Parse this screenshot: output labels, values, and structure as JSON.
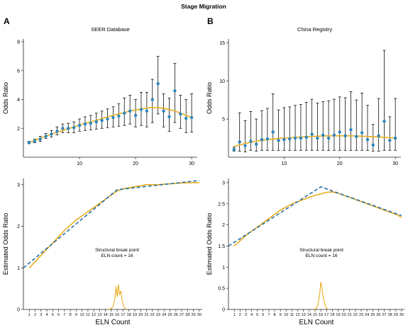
{
  "figure": {
    "title": "Stage Migration",
    "colors": {
      "points": "#2a86bf",
      "fit": "#e8ad1e",
      "dashed": "#2a6fa5",
      "axis": "#222222",
      "errorbar": "#111111"
    }
  },
  "chart_data": [
    {
      "panel": "A-top",
      "panel_label": "A",
      "type": "scatter",
      "title": "SEER Database",
      "xlabel": "",
      "ylabel": "Odds Ratio",
      "xlim": [
        0,
        31
      ],
      "ylim": [
        0,
        8.2
      ],
      "xticks": [
        10,
        20,
        30
      ],
      "yticks": [
        2,
        4,
        6,
        8
      ],
      "series": [
        {
          "x": [
            1,
            2,
            3,
            4,
            5,
            6,
            7,
            8,
            9,
            10,
            11,
            12,
            13,
            14,
            15,
            16,
            17,
            18,
            19,
            20,
            21,
            22,
            23,
            24,
            25,
            26,
            27,
            28,
            29,
            30
          ],
          "y": [
            1.0,
            1.1,
            1.25,
            1.45,
            1.6,
            1.8,
            2.0,
            2.0,
            2.05,
            2.2,
            2.3,
            2.35,
            2.45,
            2.55,
            2.65,
            2.75,
            2.85,
            3.05,
            3.2,
            2.9,
            3.3,
            3.2,
            4.0,
            5.1,
            3.2,
            2.8,
            4.6,
            3.0,
            2.7,
            2.75
          ],
          "lower": [
            0.95,
            1.0,
            1.1,
            1.3,
            1.4,
            1.55,
            1.7,
            1.7,
            1.7,
            1.8,
            1.85,
            1.9,
            1.95,
            2.0,
            2.05,
            2.1,
            2.15,
            2.2,
            2.3,
            2.1,
            2.2,
            2.1,
            2.4,
            3.0,
            2.1,
            1.8,
            2.4,
            2.0,
            1.7,
            1.75
          ],
          "upper": [
            1.1,
            1.25,
            1.45,
            1.65,
            1.85,
            2.1,
            2.3,
            2.35,
            2.45,
            2.65,
            2.8,
            2.9,
            3.05,
            3.2,
            3.35,
            3.5,
            3.7,
            4.1,
            4.3,
            4.0,
            4.5,
            4.5,
            5.4,
            7.0,
            4.4,
            4.1,
            6.5,
            4.3,
            4.0,
            4.4
          ]
        }
      ],
      "fit": {
        "x": [
          1,
          3,
          5,
          7,
          9,
          11,
          13,
          15,
          17,
          19,
          21,
          23,
          25,
          27,
          29,
          30
        ],
        "y": [
          1.0,
          1.3,
          1.6,
          1.85,
          2.1,
          2.35,
          2.55,
          2.8,
          3.0,
          3.2,
          3.35,
          3.45,
          3.4,
          3.2,
          2.9,
          2.75
        ]
      }
    },
    {
      "panel": "B-top",
      "panel_label": "B",
      "type": "scatter",
      "title": "China Registry",
      "xlabel": "",
      "ylabel": "Odds Ratio",
      "xlim": [
        0,
        31
      ],
      "ylim": [
        0,
        15.5
      ],
      "xticks": [
        10,
        20,
        30
      ],
      "yticks": [
        5,
        10,
        15
      ],
      "series": [
        {
          "x": [
            1,
            2,
            3,
            4,
            5,
            6,
            7,
            8,
            9,
            10,
            11,
            12,
            13,
            14,
            15,
            16,
            17,
            18,
            19,
            20,
            21,
            22,
            23,
            24,
            25,
            26,
            27,
            28,
            29,
            30
          ],
          "y": [
            1.0,
            2.0,
            1.5,
            2.1,
            1.7,
            2.3,
            2.4,
            3.3,
            2.2,
            2.3,
            2.4,
            2.5,
            2.5,
            2.6,
            3.0,
            2.5,
            2.9,
            2.5,
            2.9,
            3.3,
            2.8,
            3.6,
            2.7,
            3.2,
            2.3,
            1.6,
            2.8,
            4.7,
            2.2,
            2.5
          ],
          "lower": [
            0.8,
            0.8,
            0.7,
            0.9,
            0.8,
            0.9,
            0.9,
            0.9,
            0.9,
            0.9,
            0.9,
            0.9,
            0.9,
            0.9,
            0.9,
            0.9,
            0.9,
            0.9,
            0.9,
            0.9,
            0.9,
            0.9,
            0.9,
            0.9,
            0.9,
            0.8,
            0.8,
            0.9,
            0.9,
            0.9
          ],
          "upper": [
            1.3,
            5.8,
            4.8,
            6.0,
            5.0,
            6.1,
            6.4,
            8.3,
            6.2,
            6.5,
            6.6,
            6.8,
            6.9,
            7.2,
            7.6,
            7.1,
            7.3,
            7.4,
            7.6,
            7.9,
            7.8,
            8.6,
            7.5,
            8.4,
            6.8,
            4.3,
            7.7,
            14.0,
            5.3,
            7.7
          ]
        }
      ],
      "fit": {
        "x": [
          1,
          3,
          5,
          7,
          9,
          11,
          13,
          15,
          17,
          19,
          21,
          23,
          25,
          27,
          29,
          30
        ],
        "y": [
          1.4,
          1.8,
          2.1,
          2.3,
          2.45,
          2.55,
          2.65,
          2.72,
          2.78,
          2.8,
          2.8,
          2.78,
          2.72,
          2.65,
          2.55,
          2.5
        ]
      }
    },
    {
      "panel": "A-bottom",
      "type": "line",
      "title": "",
      "xlabel": "ELN Count",
      "ylabel": "Estimated Odds Ratio",
      "xlim": [
        0,
        30.5
      ],
      "ylim": [
        0,
        3.15
      ],
      "xticks": [
        1,
        2,
        3,
        4,
        5,
        6,
        7,
        8,
        9,
        10,
        11,
        12,
        13,
        14,
        15,
        16,
        17,
        18,
        19,
        20,
        21,
        22,
        23,
        24,
        25,
        26,
        27,
        28,
        29,
        30
      ],
      "yticks": [
        0,
        1,
        2,
        3
      ],
      "annotation": [
        "Structural break point",
        "ELN count = 16"
      ],
      "series": [
        {
          "style": "solid",
          "x": [
            1,
            3,
            5,
            7,
            9,
            11,
            13,
            15,
            16,
            17,
            19,
            21,
            23,
            25,
            27,
            29,
            30
          ],
          "y": [
            1.0,
            1.3,
            1.6,
            1.9,
            2.15,
            2.35,
            2.55,
            2.75,
            2.85,
            2.9,
            2.95,
            3.0,
            3.0,
            3.02,
            3.04,
            3.05,
            3.05
          ]
        },
        {
          "style": "dashed",
          "x": [
            0,
            16,
            30
          ],
          "y": [
            1.0,
            2.88,
            3.1
          ]
        },
        {
          "style": "density",
          "x": [
            14.5,
            15,
            15.3,
            15.6,
            15.8,
            16,
            16.2,
            16.4,
            16.6,
            16.8,
            17,
            17.3,
            17.6
          ],
          "y": [
            0,
            0.02,
            0.08,
            0.25,
            0.55,
            0.3,
            0.6,
            0.35,
            0.45,
            0.25,
            0.12,
            0.03,
            0
          ]
        }
      ]
    },
    {
      "panel": "B-bottom",
      "type": "line",
      "title": "",
      "xlabel": "ELN Count",
      "ylabel": "Estimated Odds Ratio",
      "xlim": [
        0,
        30.5
      ],
      "ylim": [
        0,
        3.1
      ],
      "xticks": [
        1,
        2,
        3,
        4,
        5,
        6,
        7,
        8,
        9,
        10,
        11,
        12,
        13,
        14,
        15,
        16,
        17,
        18,
        19,
        20,
        21,
        22,
        23,
        24,
        25,
        26,
        27,
        28,
        29,
        30
      ],
      "yticks": [
        0,
        0.5,
        1.0,
        1.5,
        2.0,
        2.5,
        3.0
      ],
      "annotation": [
        "Structural break point",
        "ELN count = 16"
      ],
      "series": [
        {
          "style": "solid",
          "x": [
            1,
            3,
            5,
            7,
            9,
            11,
            13,
            15,
            17,
            18,
            19,
            21,
            23,
            25,
            27,
            29,
            30
          ],
          "y": [
            1.5,
            1.75,
            1.95,
            2.15,
            2.35,
            2.5,
            2.6,
            2.7,
            2.77,
            2.78,
            2.75,
            2.65,
            2.55,
            2.45,
            2.35,
            2.25,
            2.18
          ]
        },
        {
          "style": "dashed",
          "x": [
            0,
            16,
            30
          ],
          "y": [
            1.5,
            2.9,
            2.22
          ]
        },
        {
          "style": "density",
          "x": [
            14.8,
            15.2,
            15.5,
            15.8,
            16,
            16.2,
            16.4,
            16.7,
            17,
            17.3
          ],
          "y": [
            0,
            0.02,
            0.1,
            0.35,
            0.65,
            0.5,
            0.3,
            0.12,
            0.03,
            0
          ]
        }
      ]
    }
  ]
}
